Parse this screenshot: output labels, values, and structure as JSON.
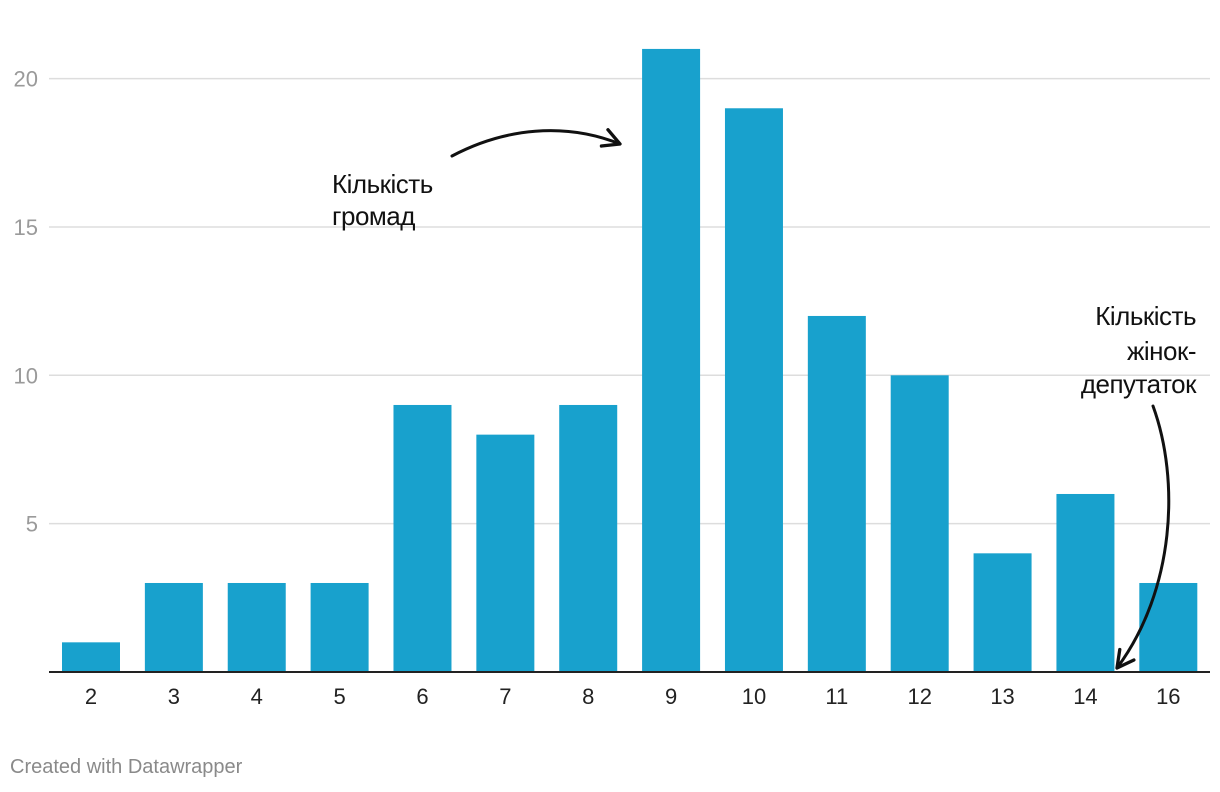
{
  "chart_data": {
    "type": "bar",
    "title": "",
    "xlabel": "",
    "ylabel": "",
    "categories": [
      "2",
      "3",
      "4",
      "5",
      "6",
      "7",
      "8",
      "9",
      "10",
      "11",
      "12",
      "13",
      "14",
      "16"
    ],
    "values": [
      1,
      3,
      3,
      3,
      9,
      8,
      9,
      21,
      19,
      12,
      10,
      4,
      6,
      3
    ],
    "ylim": [
      0,
      21
    ],
    "yticks": [
      5,
      10,
      15,
      20
    ],
    "grid": true,
    "bar_color": "#18a1cd",
    "annotations": [
      {
        "id": "communities",
        "lines": [
          "Кількість",
          "громад"
        ]
      },
      {
        "id": "women",
        "lines": [
          "Кількість",
          "жінок-",
          "депутаток"
        ]
      }
    ]
  },
  "credit": "Created with Datawrapper"
}
